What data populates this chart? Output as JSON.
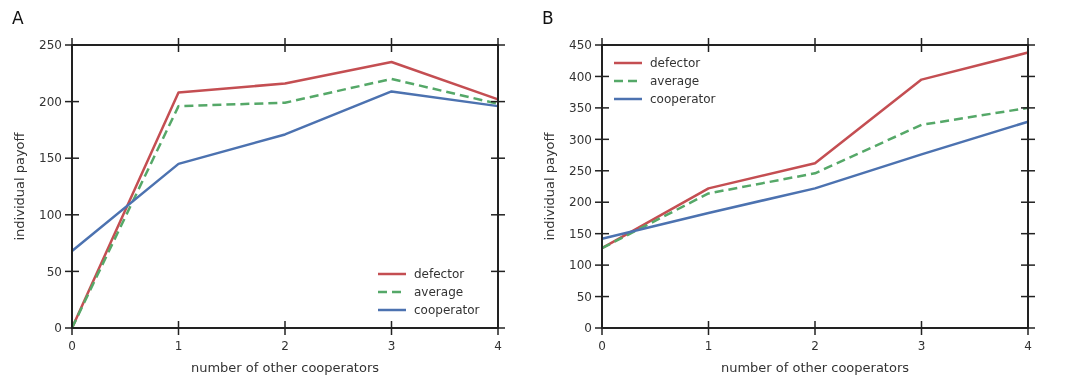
{
  "chart_data": [
    {
      "type": "line",
      "title": "A",
      "xlabel": "number of other cooperators",
      "ylabel": "individual payoff",
      "x": [
        0,
        1,
        2,
        3,
        4
      ],
      "xlim": [
        0,
        4
      ],
      "xticks": [
        0,
        1,
        2,
        3,
        4
      ],
      "ylim": [
        0,
        250
      ],
      "yticks": [
        0,
        50,
        100,
        150,
        200,
        250
      ],
      "legend": "bottom right",
      "grid": false,
      "marker": "none",
      "series": [
        {
          "name": "defector",
          "color": "#c44e52",
          "values": [
            0,
            208,
            216,
            235,
            202
          ]
        },
        {
          "name": "average",
          "color": "#55a868",
          "line_style": "dashed",
          "values": [
            0,
            196,
            199,
            220,
            198
          ]
        },
        {
          "name": "cooperator",
          "color": "#4c72b0",
          "values": [
            68,
            145,
            171,
            209,
            196
          ]
        }
      ]
    },
    {
      "type": "line",
      "title": "B",
      "xlabel": "number of other cooperators",
      "ylabel": "individual payoff",
      "x": [
        0,
        1,
        2,
        3,
        4
      ],
      "xlim": [
        0,
        4
      ],
      "xticks": [
        0,
        1,
        2,
        3,
        4
      ],
      "ylim": [
        0,
        450
      ],
      "yticks": [
        0,
        50,
        100,
        150,
        200,
        250,
        300,
        350,
        400,
        450
      ],
      "legend": "top left",
      "grid": false,
      "marker": "none",
      "series": [
        {
          "name": "defector",
          "color": "#c44e52",
          "values": [
            127,
            222,
            262,
            395,
            438
          ]
        },
        {
          "name": "average",
          "color": "#55a868",
          "line_style": "dashed",
          "values": [
            127,
            214,
            246,
            323,
            350
          ]
        },
        {
          "name": "cooperator",
          "color": "#4c72b0",
          "values": [
            142,
            183,
            222,
            276,
            328
          ]
        }
      ]
    }
  ]
}
